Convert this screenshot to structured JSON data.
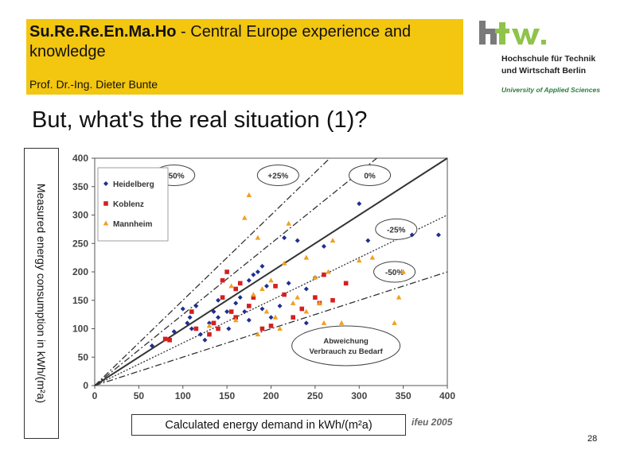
{
  "header": {
    "title_bold": "Su.Re.Re.En.Ma.Ho",
    "title_rest": " - Central Europe experience and knowledge",
    "author": "Prof. Dr.-Ing. Dieter Bunte"
  },
  "logo": {
    "mark": "htw.",
    "line1": "Hochschule für Technik",
    "line2": "und Wirtschaft Berlin",
    "line3": "University of Applied Sciences"
  },
  "slide_title": "But, what's the real situation (1)?",
  "ylabel": "Measured energy consumption in kWh/(m²a)",
  "xlabel": "Calculated energy demand in kWh/(m²a)",
  "source": "ifeu 2005",
  "page_number": "28",
  "chart_data": {
    "type": "scatter",
    "xlim": [
      0,
      400
    ],
    "ylim": [
      0,
      400
    ],
    "x_ticks": [
      0,
      50,
      100,
      150,
      200,
      250,
      300,
      350,
      400
    ],
    "y_ticks": [
      0,
      50,
      100,
      150,
      200,
      250,
      300,
      350,
      400
    ],
    "grid": false,
    "legend_position": "top-left",
    "reference_lines": [
      {
        "label": "+50%",
        "slope": 1.5
      },
      {
        "label": "+25%",
        "slope": 1.25
      },
      {
        "label": "0%",
        "slope": 1.0
      },
      {
        "label": "-25%",
        "slope": 0.75
      },
      {
        "label": "-50%",
        "slope": 0.5
      }
    ],
    "annotation": [
      "Abweichung",
      "Verbrauch zu Bedarf"
    ],
    "series": [
      {
        "name": "Heidelberg",
        "color": "#1f2f8f",
        "marker": "diamond",
        "points": [
          [
            65,
            70
          ],
          [
            90,
            95
          ],
          [
            100,
            135
          ],
          [
            105,
            110
          ],
          [
            108,
            120
          ],
          [
            110,
            100
          ],
          [
            115,
            140
          ],
          [
            120,
            90
          ],
          [
            130,
            110
          ],
          [
            135,
            130
          ],
          [
            140,
            120
          ],
          [
            140,
            150
          ],
          [
            150,
            130
          ],
          [
            152,
            100
          ],
          [
            160,
            145
          ],
          [
            165,
            155
          ],
          [
            170,
            130
          ],
          [
            175,
            185
          ],
          [
            180,
            195
          ],
          [
            185,
            200
          ],
          [
            190,
            210
          ],
          [
            190,
            135
          ],
          [
            200,
            120
          ],
          [
            210,
            140
          ],
          [
            215,
            260
          ],
          [
            220,
            180
          ],
          [
            230,
            255
          ],
          [
            240,
            170
          ],
          [
            240,
            110
          ],
          [
            250,
            190
          ],
          [
            260,
            245
          ],
          [
            300,
            320
          ],
          [
            310,
            255
          ],
          [
            360,
            265
          ],
          [
            390,
            265
          ],
          [
            175,
            115
          ],
          [
            125,
            80
          ],
          [
            195,
            175
          ]
        ]
      },
      {
        "name": "Koblenz",
        "color": "#d42020",
        "marker": "square",
        "points": [
          [
            80,
            82
          ],
          [
            85,
            80
          ],
          [
            110,
            130
          ],
          [
            115,
            100
          ],
          [
            130,
            90
          ],
          [
            135,
            110
          ],
          [
            140,
            100
          ],
          [
            145,
            155
          ],
          [
            145,
            185
          ],
          [
            150,
            200
          ],
          [
            155,
            130
          ],
          [
            160,
            170
          ],
          [
            165,
            180
          ],
          [
            175,
            140
          ],
          [
            180,
            155
          ],
          [
            190,
            100
          ],
          [
            205,
            175
          ],
          [
            215,
            160
          ],
          [
            225,
            120
          ],
          [
            235,
            135
          ],
          [
            250,
            155
          ],
          [
            255,
            145
          ],
          [
            260,
            195
          ],
          [
            270,
            150
          ],
          [
            285,
            180
          ],
          [
            160,
            120
          ],
          [
            200,
            105
          ]
        ]
      },
      {
        "name": "Mannheim",
        "color": "#f0a020",
        "marker": "triangle",
        "points": [
          [
            170,
            295
          ],
          [
            175,
            335
          ],
          [
            155,
            175
          ],
          [
            180,
            160
          ],
          [
            185,
            260
          ],
          [
            190,
            170
          ],
          [
            200,
            185
          ],
          [
            205,
            120
          ],
          [
            210,
            100
          ],
          [
            215,
            215
          ],
          [
            225,
            145
          ],
          [
            230,
            155
          ],
          [
            240,
            130
          ],
          [
            250,
            190
          ],
          [
            255,
            145
          ],
          [
            260,
            110
          ],
          [
            265,
            200
          ],
          [
            270,
            255
          ],
          [
            280,
            110
          ],
          [
            300,
            220
          ],
          [
            315,
            225
          ],
          [
            340,
            110
          ],
          [
            345,
            155
          ],
          [
            350,
            200
          ],
          [
            220,
            285
          ],
          [
            185,
            90
          ],
          [
            195,
            130
          ],
          [
            240,
            225
          ],
          [
            160,
            115
          ],
          [
            130,
            105
          ]
        ]
      }
    ]
  }
}
